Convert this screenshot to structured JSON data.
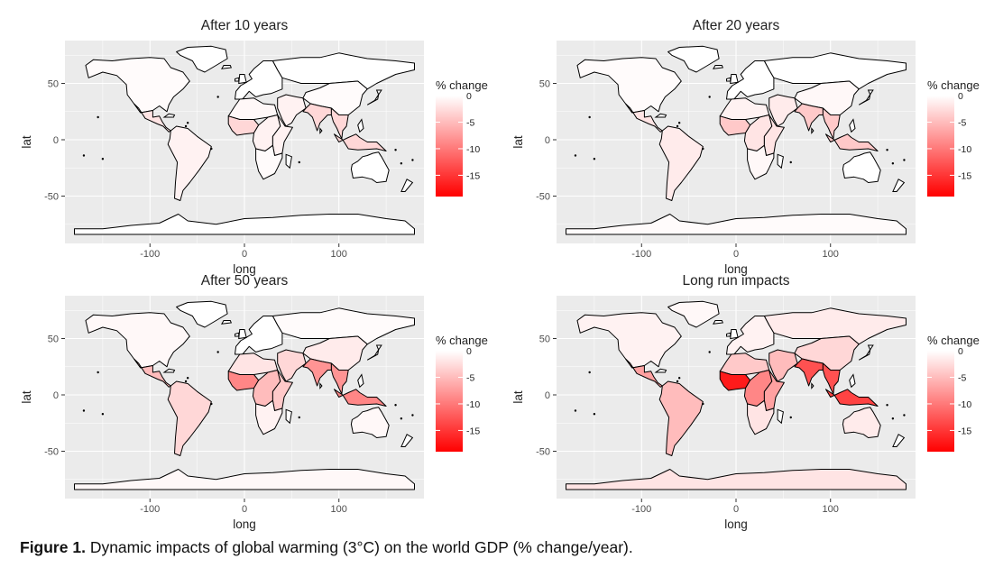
{
  "figure": {
    "caption_label": "Figure 1.",
    "caption_text": "Dynamic impacts of global warming (3°C) on the world GDP (% change/year)."
  },
  "axes": {
    "xlabel": "long",
    "ylabel": "lat",
    "x_ticks": [
      "-100",
      "0",
      "100"
    ],
    "y_ticks": [
      "50",
      "0",
      "-50"
    ]
  },
  "legend": {
    "title": "% change",
    "ticks": [
      "0",
      "-5",
      "-10",
      "-15"
    ],
    "range": [
      -19,
      0
    ],
    "colors": {
      "high": "#ffffff",
      "low": "#ff0000"
    }
  },
  "colors": {
    "panel_bg": "#ebebeb",
    "grid": "#ffffff",
    "land_outline": "#000000"
  },
  "chart_data": [
    {
      "type": "heatmap",
      "title": "After 10 years",
      "xlabel": "long",
      "ylabel": "lat",
      "xlim": [
        -180,
        180
      ],
      "ylim": [
        -90,
        85
      ],
      "regions": [
        {
          "region": "North America",
          "value": -0.3
        },
        {
          "region": "Central America",
          "value": -2
        },
        {
          "region": "South America",
          "value": -1
        },
        {
          "region": "Europe",
          "value": 0
        },
        {
          "region": "North Africa",
          "value": -0.5
        },
        {
          "region": "West Africa",
          "value": -3
        },
        {
          "region": "Central Africa",
          "value": -1
        },
        {
          "region": "East Africa",
          "value": -1
        },
        {
          "region": "Southern Africa",
          "value": -0.3
        },
        {
          "region": "Middle East",
          "value": -1
        },
        {
          "region": "Russia",
          "value": 0
        },
        {
          "region": "India",
          "value": -3
        },
        {
          "region": "China",
          "value": -0.3
        },
        {
          "region": "Southeast Asia",
          "value": -3
        },
        {
          "region": "Indonesia",
          "value": -3
        },
        {
          "region": "Australia",
          "value": 0
        },
        {
          "region": "Greenland",
          "value": 0
        },
        {
          "region": "Antarctica",
          "value": 0
        }
      ]
    },
    {
      "type": "heatmap",
      "title": "After 20 years",
      "xlabel": "long",
      "ylabel": "lat",
      "xlim": [
        -180,
        180
      ],
      "ylim": [
        -90,
        85
      ],
      "regions": [
        {
          "region": "North America",
          "value": -0.3
        },
        {
          "region": "Central America",
          "value": -2
        },
        {
          "region": "South America",
          "value": -1.5
        },
        {
          "region": "Europe",
          "value": 0
        },
        {
          "region": "North Africa",
          "value": -1
        },
        {
          "region": "West Africa",
          "value": -4
        },
        {
          "region": "Central Africa",
          "value": -2
        },
        {
          "region": "East Africa",
          "value": -2
        },
        {
          "region": "Southern Africa",
          "value": -0.5
        },
        {
          "region": "Middle East",
          "value": -1.5
        },
        {
          "region": "Russia",
          "value": 0
        },
        {
          "region": "India",
          "value": -4
        },
        {
          "region": "China",
          "value": -0.5
        },
        {
          "region": "Southeast Asia",
          "value": -4
        },
        {
          "region": "Indonesia",
          "value": -4
        },
        {
          "region": "Australia",
          "value": 0
        },
        {
          "region": "Greenland",
          "value": 0
        },
        {
          "region": "Antarctica",
          "value": -0.3
        }
      ]
    },
    {
      "type": "heatmap",
      "title": "After 50 years",
      "xlabel": "long",
      "ylabel": "lat",
      "xlim": [
        -180,
        180
      ],
      "ylim": [
        -90,
        85
      ],
      "regions": [
        {
          "region": "North America",
          "value": -0.5
        },
        {
          "region": "Central America",
          "value": -5
        },
        {
          "region": "South America",
          "value": -3
        },
        {
          "region": "Europe",
          "value": 0
        },
        {
          "region": "North Africa",
          "value": -2
        },
        {
          "region": "West Africa",
          "value": -9
        },
        {
          "region": "Central Africa",
          "value": -5
        },
        {
          "region": "East Africa",
          "value": -4
        },
        {
          "region": "Southern Africa",
          "value": -1
        },
        {
          "region": "Middle East",
          "value": -3
        },
        {
          "region": "Russia",
          "value": -0.3
        },
        {
          "region": "India",
          "value": -8
        },
        {
          "region": "China",
          "value": -1.5
        },
        {
          "region": "Southeast Asia",
          "value": -8
        },
        {
          "region": "Indonesia",
          "value": -9
        },
        {
          "region": "Australia",
          "value": -0.5
        },
        {
          "region": "Greenland",
          "value": 0
        },
        {
          "region": "Antarctica",
          "value": -0.5
        }
      ]
    },
    {
      "type": "heatmap",
      "title": "Long run impacts",
      "xlabel": "long",
      "ylabel": "lat",
      "xlim": [
        -180,
        180
      ],
      "ylim": [
        -90,
        85
      ],
      "regions": [
        {
          "region": "North America",
          "value": -1
        },
        {
          "region": "Central America",
          "value": -7
        },
        {
          "region": "South America",
          "value": -5
        },
        {
          "region": "Europe",
          "value": -1
        },
        {
          "region": "North Africa",
          "value": -4
        },
        {
          "region": "West Africa",
          "value": -17
        },
        {
          "region": "Central Africa",
          "value": -9
        },
        {
          "region": "East Africa",
          "value": -7
        },
        {
          "region": "Southern Africa",
          "value": -2
        },
        {
          "region": "Middle East",
          "value": -5
        },
        {
          "region": "Russia",
          "value": -1.5
        },
        {
          "region": "India",
          "value": -13
        },
        {
          "region": "China",
          "value": -3
        },
        {
          "region": "Southeast Asia",
          "value": -13
        },
        {
          "region": "Indonesia",
          "value": -14
        },
        {
          "region": "Australia",
          "value": -1.5
        },
        {
          "region": "Greenland",
          "value": -0.5
        },
        {
          "region": "Antarctica",
          "value": -2
        }
      ]
    }
  ]
}
